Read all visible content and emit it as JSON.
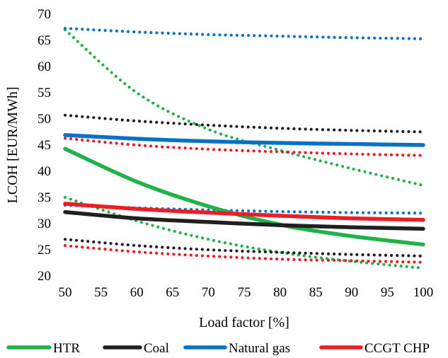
{
  "chart_data": {
    "type": "line",
    "xlabel": "Load factor [%]",
    "ylabel": "LCOH [EUR/MWh]",
    "xlim": [
      50,
      100
    ],
    "ylim": [
      20,
      70
    ],
    "xticks": [
      50,
      55,
      60,
      65,
      70,
      75,
      80,
      85,
      90,
      95,
      100
    ],
    "yticks": [
      20,
      25,
      30,
      35,
      40,
      45,
      50,
      55,
      60,
      65,
      70
    ],
    "grid": false,
    "legend_position": "bottom",
    "legend": [
      {
        "name": "HTR",
        "color": "#1fb24a"
      },
      {
        "name": "Coal",
        "color": "#231f20"
      },
      {
        "name": "Natural gas",
        "color": "#0a72c4"
      },
      {
        "name": "CCGT CHP",
        "color": "#ee1c24"
      }
    ],
    "series": [
      {
        "group": "HTR",
        "style": "solid",
        "color": "#1fb24a",
        "x": [
          50,
          60,
          70,
          80,
          90,
          100
        ],
        "y": [
          44.3,
          38.0,
          33.3,
          29.8,
          27.6,
          26.0
        ]
      },
      {
        "group": "HTR",
        "style": "dotted",
        "color": "#1fb24a",
        "x": [
          50,
          60,
          70,
          80,
          90,
          100
        ],
        "y": [
          67.0,
          55.0,
          48.0,
          44.0,
          40.5,
          37.3
        ]
      },
      {
        "group": "HTR",
        "style": "dotted",
        "color": "#1fb24a",
        "x": [
          50,
          60,
          70,
          80,
          90,
          100
        ],
        "y": [
          35.0,
          30.5,
          27.0,
          24.5,
          22.8,
          21.5
        ]
      },
      {
        "group": "Coal",
        "style": "solid",
        "color": "#231f20",
        "x": [
          50,
          60,
          70,
          80,
          90,
          100
        ],
        "y": [
          32.2,
          31.0,
          30.3,
          29.7,
          29.3,
          29.0
        ]
      },
      {
        "group": "Coal",
        "style": "dotted",
        "color": "#231f20",
        "x": [
          50,
          60,
          70,
          80,
          90,
          100
        ],
        "y": [
          50.7,
          49.6,
          48.8,
          48.2,
          47.8,
          47.5
        ]
      },
      {
        "group": "Coal",
        "style": "dotted",
        "color": "#231f20",
        "x": [
          50,
          60,
          70,
          80,
          90,
          100
        ],
        "y": [
          27.0,
          25.8,
          25.0,
          24.5,
          24.1,
          23.8
        ]
      },
      {
        "group": "Natural gas",
        "style": "solid",
        "color": "#0a72c4",
        "x": [
          50,
          60,
          70,
          80,
          90,
          100
        ],
        "y": [
          46.9,
          46.2,
          45.7,
          45.4,
          45.2,
          45.0
        ]
      },
      {
        "group": "Natural gas",
        "style": "dotted",
        "color": "#0a72c4",
        "x": [
          50,
          60,
          70,
          80,
          90,
          100
        ],
        "y": [
          67.3,
          66.6,
          66.1,
          65.8,
          65.5,
          65.3
        ]
      },
      {
        "group": "Natural gas",
        "style": "dotted",
        "color": "#0a72c4",
        "x": [
          50,
          60,
          70,
          80,
          90,
          100
        ],
        "y": [
          33.5,
          33.0,
          32.6,
          32.3,
          32.1,
          32.0
        ]
      },
      {
        "group": "CCGT CHP",
        "style": "solid",
        "color": "#ee1c24",
        "x": [
          50,
          60,
          70,
          80,
          90,
          100
        ],
        "y": [
          33.8,
          32.8,
          32.1,
          31.5,
          31.0,
          30.7
        ]
      },
      {
        "group": "CCGT CHP",
        "style": "dotted",
        "color": "#ee1c24",
        "x": [
          50,
          60,
          70,
          80,
          90,
          100
        ],
        "y": [
          46.3,
          45.0,
          44.2,
          43.7,
          43.3,
          43.0
        ]
      },
      {
        "group": "CCGT CHP",
        "style": "dotted",
        "color": "#ee1c24",
        "x": [
          50,
          60,
          70,
          80,
          90,
          100
        ],
        "y": [
          25.8,
          24.6,
          23.8,
          23.2,
          22.9,
          22.6
        ]
      }
    ]
  }
}
